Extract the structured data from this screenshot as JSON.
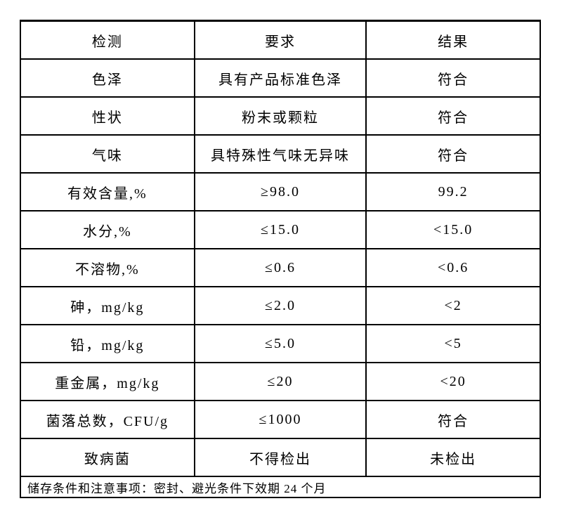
{
  "table": {
    "columns": [
      "检测",
      "要求",
      "结果"
    ],
    "rows": [
      {
        "test": "色泽",
        "requirement": "具有产品标准色泽",
        "result": "符合"
      },
      {
        "test": "性状",
        "requirement": "粉末或颗粒",
        "result": "符合"
      },
      {
        "test": "气味",
        "requirement": "具特殊性气味无异味",
        "result": "符合"
      },
      {
        "test": "有效含量,%",
        "requirement": "≥98.0",
        "result": "99.2"
      },
      {
        "test": "水分,%",
        "requirement": "≤15.0",
        "result": "<15.0"
      },
      {
        "test": "不溶物,%",
        "requirement": "≤0.6",
        "result": "<0.6"
      },
      {
        "test": "砷，mg/kg",
        "requirement": "≤2.0",
        "result": "<2"
      },
      {
        "test": "铅，mg/kg",
        "requirement": "≤5.0",
        "result": "<5"
      },
      {
        "test": "重金属，mg/kg",
        "requirement": "≤20",
        "result": "<20"
      },
      {
        "test": "菌落总数，CFU/g",
        "requirement": "≤1000",
        "result": "符合"
      },
      {
        "test": "致病菌",
        "requirement": "不得检出",
        "result": "未检出"
      }
    ],
    "footer_note": "储存条件和注意事项：密封、避光条件下效期 24 个月"
  },
  "colors": {
    "background": "#ffffff",
    "border": "#000000",
    "text": "#000000"
  }
}
